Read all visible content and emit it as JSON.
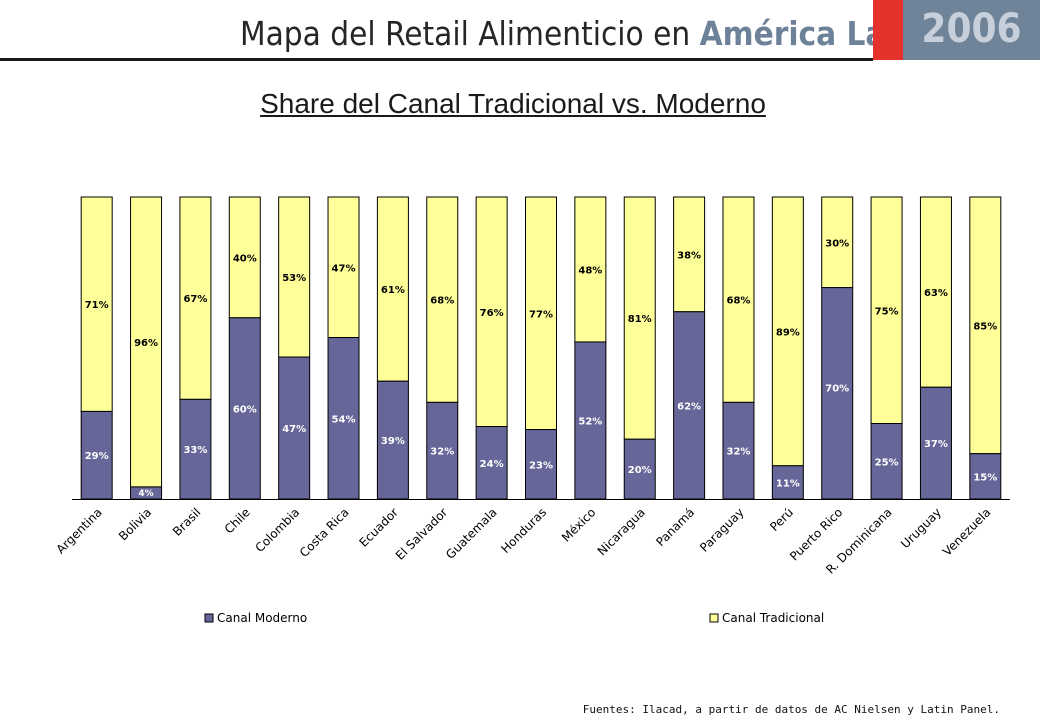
{
  "header": {
    "title_main": "Mapa del Retail Alimenticio en",
    "title_accent": "América Latina",
    "year": "2006"
  },
  "source_note": "Fuentes: Ilacad, a partir de datos de AC Nielsen y Latin Panel.",
  "colors": {
    "moderno": "#666699",
    "tradicional": "#ffff99",
    "red": "#e5322d",
    "slate": "#6f8499"
  },
  "chart_data": {
    "type": "bar",
    "stacked": true,
    "title": "Share del Canal Tradicional vs. Moderno",
    "categories": [
      "Argentina",
      "Bolivia",
      "Brasil",
      "Chile",
      "Colombia",
      "Costa Rica",
      "Ecuador",
      "El Salvador",
      "Guatemala",
      "Honduras",
      "México",
      "Nicaragua",
      "Panamá",
      "Paraguay",
      "Perú",
      "Puerto Rico",
      "R. Dominicana",
      "Uruguay",
      "Venezuela"
    ],
    "series": [
      {
        "name": "Canal Moderno",
        "values": [
          29,
          4,
          33,
          60,
          47,
          54,
          39,
          32,
          24,
          23,
          52,
          20,
          62,
          32,
          11,
          70,
          25,
          37,
          15
        ]
      },
      {
        "name": "Canal Tradicional",
        "values": [
          71,
          96,
          67,
          40,
          53,
          47,
          61,
          68,
          76,
          77,
          48,
          81,
          38,
          68,
          89,
          30,
          75,
          63,
          85
        ]
      }
    ],
    "value_format": "percent",
    "ylim": [
      0,
      100
    ],
    "legend_position": "bottom",
    "grid": false
  }
}
